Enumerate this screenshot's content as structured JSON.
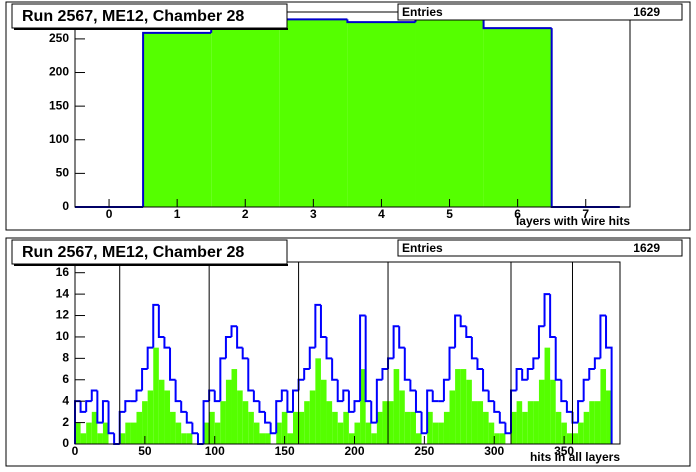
{
  "chart_data": [
    {
      "type": "histogram",
      "title": "Run 2567, ME12, Chamber 28",
      "stats": {
        "label": "Entries",
        "value": "1629"
      },
      "xlabel": "layers with wire hits",
      "bins": [
        -0.5,
        0.5,
        1.5,
        2.5,
        3.5,
        4.5,
        5.5,
        6.5,
        7.5
      ],
      "values": [
        0,
        259,
        271,
        279,
        275,
        279,
        266,
        0
      ],
      "color": "#55ff00",
      "line_color": "#0000cc",
      "xlim": [
        -0.5,
        7.65
      ],
      "xticks": [
        0,
        1,
        2,
        3,
        4,
        5,
        6,
        7
      ],
      "ylim": [
        0,
        290
      ],
      "yticks": [
        0,
        50,
        100,
        150,
        200,
        250
      ]
    },
    {
      "type": "histogram",
      "title": "Run 2567, ME12, Chamber 28",
      "stats": {
        "label": "Entries",
        "value": "1629"
      },
      "xlabel": "hits in all layers",
      "bins": [
        0,
        4,
        8,
        12,
        16,
        20,
        24,
        28,
        32,
        36,
        40,
        44,
        48,
        52,
        56,
        60,
        64,
        68,
        72,
        76,
        80,
        84,
        88,
        92,
        96,
        100,
        104,
        108,
        112,
        116,
        120,
        124,
        128,
        132,
        136,
        140,
        144,
        148,
        152,
        156,
        160,
        164,
        168,
        172,
        176,
        180,
        184,
        188,
        192,
        196,
        200,
        204,
        208,
        212,
        216,
        220,
        224,
        228,
        232,
        236,
        240,
        244,
        248,
        252,
        256,
        260,
        264,
        268,
        272,
        276,
        280,
        284,
        288,
        292,
        296,
        300,
        304,
        308,
        312,
        316,
        320,
        324,
        328,
        332,
        336,
        340,
        344,
        348,
        352,
        356,
        360,
        364,
        368,
        372,
        376,
        380,
        384
      ],
      "series": [
        {
          "color": "#55ff00",
          "style": "fill",
          "values": [
            2,
            1,
            2,
            3,
            1,
            2,
            0,
            0,
            1,
            2,
            2,
            3,
            4,
            5,
            9,
            6,
            5,
            3,
            2,
            1,
            1,
            0,
            0,
            2,
            3,
            2,
            4,
            6,
            7,
            5,
            4,
            3,
            2,
            1,
            1,
            0,
            2,
            3,
            1,
            3,
            3,
            4,
            5,
            8,
            6,
            4,
            3,
            2,
            3,
            1,
            2,
            7,
            2,
            1,
            3,
            4,
            4,
            7,
            5,
            3,
            3,
            1,
            0,
            3,
            2,
            2,
            3,
            5,
            7,
            7,
            6,
            4,
            4,
            3,
            2,
            1,
            1,
            0,
            3,
            4,
            3,
            4,
            4,
            6,
            9,
            6,
            3,
            2,
            1,
            1,
            2,
            3,
            4,
            4,
            7,
            5
          ]
        },
        {
          "color": "#0000ff",
          "style": "line",
          "values": [
            4,
            3,
            4,
            5,
            2,
            4,
            1,
            0,
            3,
            4,
            4,
            5,
            7,
            9,
            13,
            10,
            9,
            6,
            4,
            3,
            2,
            1,
            0,
            4,
            5,
            4,
            8,
            10,
            11,
            9,
            8,
            5,
            4,
            3,
            2,
            1,
            4,
            5,
            3,
            5,
            6,
            7,
            9,
            13,
            10,
            8,
            6,
            4,
            5,
            3,
            4,
            12,
            4,
            2,
            6,
            7,
            8,
            11,
            9,
            6,
            5,
            3,
            1,
            5,
            4,
            4,
            6,
            9,
            12,
            11,
            10,
            8,
            7,
            5,
            4,
            3,
            2,
            1,
            5,
            7,
            6,
            7,
            8,
            11,
            14,
            10,
            6,
            4,
            3,
            2,
            4,
            6,
            7,
            8,
            12,
            9
          ]
        }
      ],
      "layer_lines": [
        32,
        96,
        160,
        224,
        312,
        356
      ],
      "xlim": [
        0,
        390
      ],
      "xticks": [
        0,
        50,
        100,
        150,
        200,
        250,
        300,
        350
      ],
      "ylim": [
        0,
        17
      ],
      "yticks": [
        0,
        2,
        4,
        6,
        8,
        10,
        12,
        14,
        16
      ]
    }
  ]
}
